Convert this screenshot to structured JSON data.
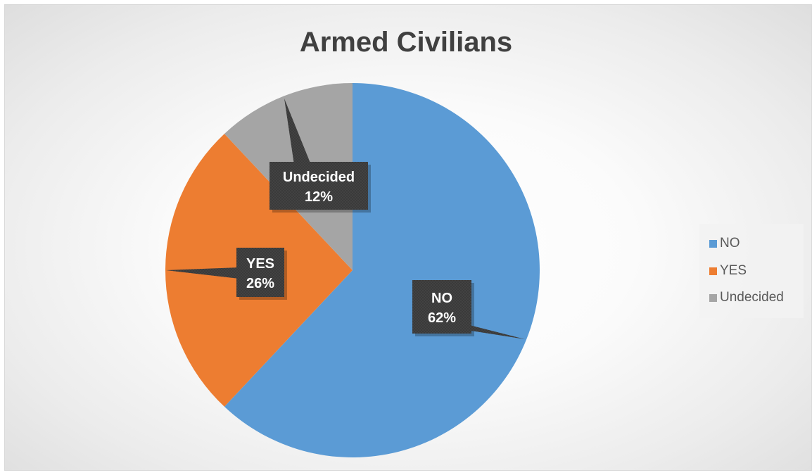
{
  "chart_data": {
    "type": "pie",
    "title": "Armed Civilians",
    "slices": [
      {
        "name": "NO",
        "value": 62,
        "label": "62%",
        "color": "#5b9bd5"
      },
      {
        "name": "YES",
        "value": 26,
        "label": "26%",
        "color": "#ed7d31"
      },
      {
        "name": "Undecided",
        "value": 12,
        "label": "12%",
        "color": "#a5a5a5"
      }
    ],
    "start_angle_deg": 0,
    "direction": "clockwise",
    "data_labels": "callout",
    "legend": "right"
  }
}
